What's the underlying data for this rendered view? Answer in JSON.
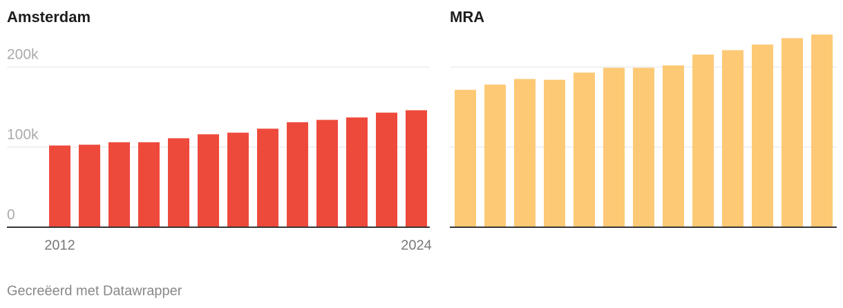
{
  "chart_data": [
    {
      "type": "bar",
      "title": "Amsterdam",
      "categories": [
        "2012",
        null,
        null,
        null,
        null,
        null,
        null,
        null,
        null,
        null,
        null,
        null,
        "2024"
      ],
      "values": [
        102000,
        103000,
        106000,
        106000,
        111000,
        116000,
        118000,
        123000,
        131000,
        134000,
        137000,
        143000,
        146000
      ],
      "color": "#ee4a3c",
      "ylim": [
        0,
        240000
      ],
      "yticks": [
        0,
        {
          "value": 100000,
          "label": "100k"
        },
        {
          "value": 200000,
          "label": "200k"
        }
      ],
      "ytick_labels": true,
      "grid": true
    },
    {
      "type": "bar",
      "title": "MRA",
      "categories": [
        null,
        null,
        null,
        null,
        null,
        null,
        null,
        null,
        null,
        null,
        null,
        null,
        null
      ],
      "values": [
        171500,
        178000,
        185000,
        184000,
        193000,
        199000,
        199000,
        202000,
        215500,
        221000,
        228000,
        236000,
        240500
      ],
      "color": "#fdc975",
      "ylim": [
        0,
        240000
      ],
      "yticks": [
        0,
        100000,
        200000
      ],
      "ytick_labels": false,
      "grid": true
    }
  ],
  "footer": "Gecreëerd met Datawrapper"
}
